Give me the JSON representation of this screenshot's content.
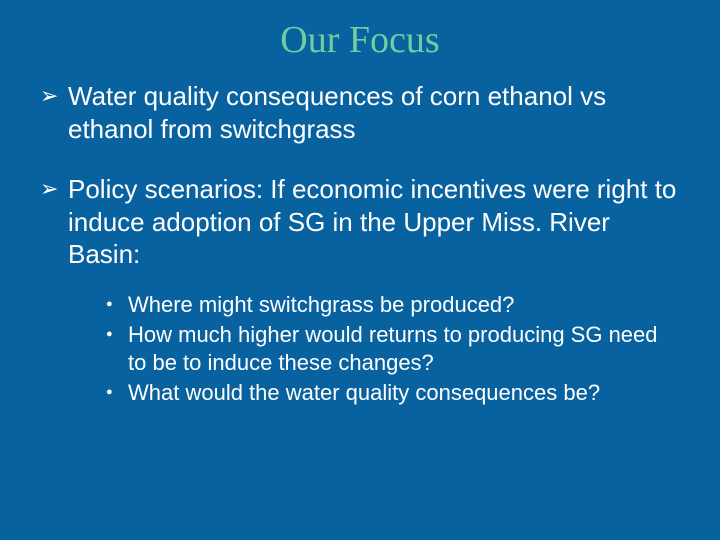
{
  "slide": {
    "title": "Our Focus",
    "background_color": "#0862a0",
    "title_color": "#6fcd9f",
    "text_color": "#ffffff",
    "title_fontsize": 38,
    "body_fontsize": 26,
    "sub_fontsize": 22,
    "bullets": [
      {
        "text": "Water quality consequences of corn ethanol vs ethanol from switchgrass",
        "children": []
      },
      {
        "text": "Policy scenarios: If economic incentives were right to induce adoption of SG in the Upper Miss. River Basin:",
        "children": [
          "Where might switchgrass be produced?",
          "How much higher would returns to producing SG need to be to induce these changes?",
          "What would the water quality consequences be?"
        ]
      }
    ]
  }
}
